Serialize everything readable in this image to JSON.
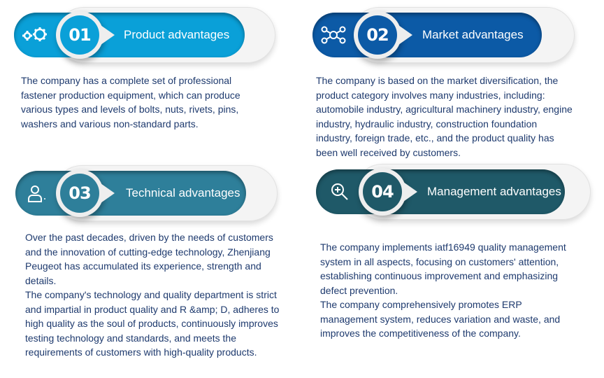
{
  "colors": {
    "product": "#0aa0d8",
    "market": "#0c5aa6",
    "technical": "#2e7f9a",
    "management": "#1f5968",
    "text": "#1e3a6e"
  },
  "cards": [
    {
      "number": "01",
      "title": "Product advantages",
      "icon": "gears-icon",
      "paragraphs": [
        "The company has a complete set of professional fastener production equipment, which can produce various types and levels of bolts, nuts, rivets, pins, washers and various non-standard parts."
      ]
    },
    {
      "number": "02",
      "title": "Market advantages",
      "icon": "network-icon",
      "paragraphs": [
        "The company is based on the market diversification, the product category involves many industries, including: automobile industry, agricultural machinery industry, engine industry, hydraulic industry, construction foundation industry, foreign trade, etc., and the product quality has been well received by customers."
      ]
    },
    {
      "number": "03",
      "title": "Technical advantages",
      "icon": "user-icon",
      "paragraphs": [
        "Over the past decades, driven by the needs of customers and the innovation of cutting-edge technology, Zhenjiang Peugeot has accumulated its experience, strength and details.",
        "The company's technology and quality department is strict and impartial in product quality and R &amp; D, adheres to high quality as the soul of products, continuously improves testing technology and standards, and meets the requirements of customers with high-quality products."
      ]
    },
    {
      "number": "04",
      "title": "Management advantages",
      "icon": "zoom-in-icon",
      "paragraphs": [
        "The company implements iatf16949 quality management system in all aspects, focusing on customers' attention, establishing continuous improvement and emphasizing defect prevention.",
        "The company comprehensively promotes ERP management system, reduces variation and waste, and improves the competitiveness of the company."
      ]
    }
  ]
}
